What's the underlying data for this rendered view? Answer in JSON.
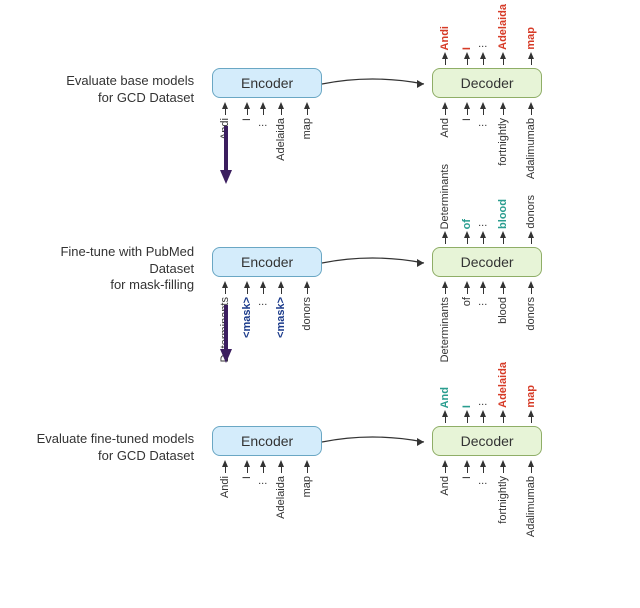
{
  "colors": {
    "encoder_bg": "#d4ecfb",
    "encoder_border": "#6aa7c4",
    "decoder_bg": "#e7f4d7",
    "decoder_border": "#8fae67",
    "token_black": "#333333",
    "token_red": "#d63b27",
    "token_teal": "#2a9d8f",
    "token_navy": "#1a3a8a",
    "big_arrow": "#3b1e5f",
    "bg": "#ffffff"
  },
  "encoder_label": "Encoder",
  "decoder_label": "Decoder",
  "stages": [
    {
      "label_l1": "Evaluate base models",
      "label_l2": "for GCD Dataset",
      "encoder_in": [
        {
          "t": "Andi",
          "c": "black"
        },
        {
          "t": "I",
          "c": "black"
        },
        {
          "t": "...",
          "c": "black",
          "ell": true
        },
        {
          "t": "Adelaida",
          "c": "black"
        },
        {
          "t": "map",
          "c": "black"
        }
      ],
      "decoder_in": [
        {
          "t": "And",
          "c": "black"
        },
        {
          "t": "I",
          "c": "black"
        },
        {
          "t": "...",
          "c": "black",
          "ell": true
        },
        {
          "t": "fortnightly",
          "c": "black"
        },
        {
          "t": "Adalimumab",
          "c": "black"
        }
      ],
      "decoder_out": [
        {
          "t": "Andi",
          "c": "red"
        },
        {
          "t": "I",
          "c": "red"
        },
        {
          "t": "...",
          "c": "black",
          "ell": true
        },
        {
          "t": "Adelaida",
          "c": "red"
        },
        {
          "t": "map",
          "c": "red"
        }
      ]
    },
    {
      "label_l1": "Fine-tune with PubMed Dataset",
      "label_l2": "for mask-filling",
      "encoder_in": [
        {
          "t": "Determinants",
          "c": "black"
        },
        {
          "t": "<mask>",
          "c": "navy"
        },
        {
          "t": "...",
          "c": "black",
          "ell": true
        },
        {
          "t": "<mask>",
          "c": "navy"
        },
        {
          "t": "donors",
          "c": "black"
        }
      ],
      "decoder_in": [
        {
          "t": "Determinants",
          "c": "black"
        },
        {
          "t": "of",
          "c": "black"
        },
        {
          "t": "...",
          "c": "black",
          "ell": true
        },
        {
          "t": "blood",
          "c": "black"
        },
        {
          "t": "donors",
          "c": "black"
        }
      ],
      "decoder_out": [
        {
          "t": "Determinants",
          "c": "black"
        },
        {
          "t": "of",
          "c": "teal"
        },
        {
          "t": "...",
          "c": "black",
          "ell": true
        },
        {
          "t": "blood",
          "c": "teal"
        },
        {
          "t": "donors",
          "c": "black"
        }
      ]
    },
    {
      "label_l1": "Evaluate fine-tuned models",
      "label_l2": "for GCD Dataset",
      "encoder_in": [
        {
          "t": "Andi",
          "c": "black"
        },
        {
          "t": "I",
          "c": "black"
        },
        {
          "t": "...",
          "c": "black",
          "ell": true
        },
        {
          "t": "Adelaida",
          "c": "black"
        },
        {
          "t": "map",
          "c": "black"
        }
      ],
      "decoder_in": [
        {
          "t": "And",
          "c": "black"
        },
        {
          "t": "I",
          "c": "black"
        },
        {
          "t": "...",
          "c": "black",
          "ell": true
        },
        {
          "t": "fortnightly",
          "c": "black"
        },
        {
          "t": "Adalimumab",
          "c": "black"
        }
      ],
      "decoder_out": [
        {
          "t": "And",
          "c": "teal"
        },
        {
          "t": "I",
          "c": "teal"
        },
        {
          "t": "...",
          "c": "black",
          "ell": true
        },
        {
          "t": "Adelaida",
          "c": "red"
        },
        {
          "t": "map",
          "c": "red"
        }
      ]
    }
  ]
}
